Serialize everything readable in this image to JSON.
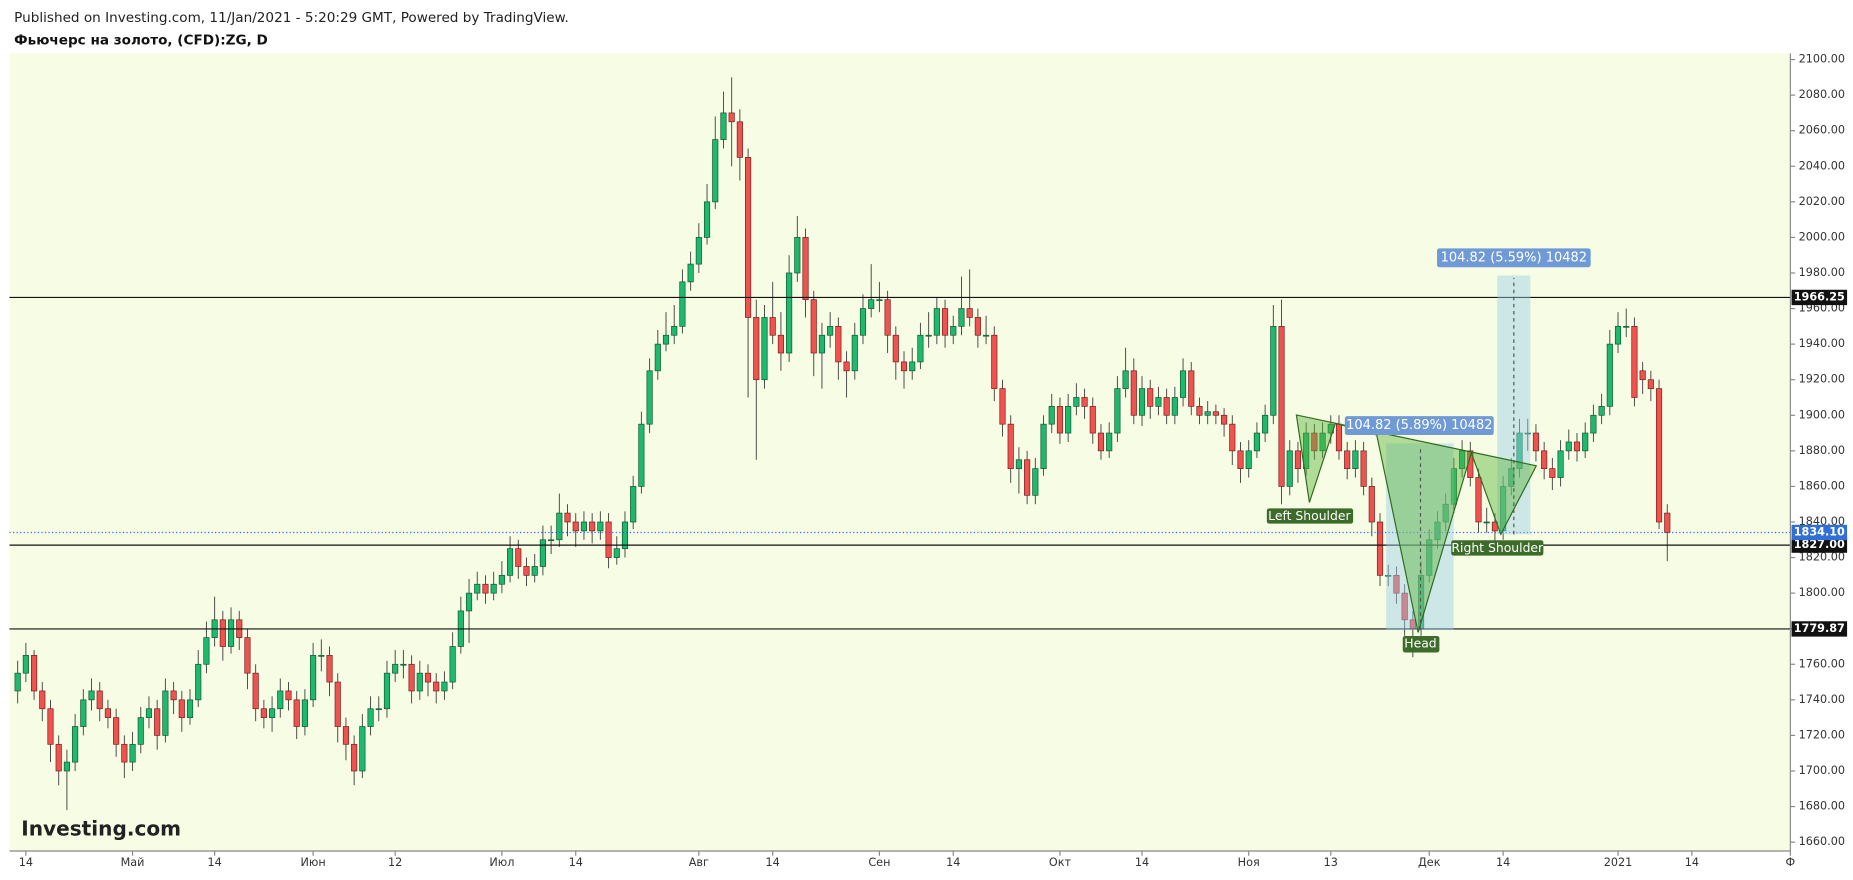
{
  "header": {
    "published": "Published on Investing.com, 11/Jan/2021 - 5:20:29 GMT, Powered by TradingView."
  },
  "logo": "Investing.com",
  "chart_data": {
    "type": "candlestick",
    "title": "Фьючерс на золото, (CFD):ZG, D",
    "up_color": "#1fb96e",
    "down_color": "#ef5350",
    "xlim": [
      -1,
      216
    ],
    "xticks": [
      {
        "value": 1,
        "label": "14"
      },
      {
        "value": 14,
        "label": "Май"
      },
      {
        "value": 24,
        "label": "14"
      },
      {
        "value": 36,
        "label": "Июн"
      },
      {
        "value": 46,
        "label": "12"
      },
      {
        "value": 59,
        "label": "Июл"
      },
      {
        "value": 68,
        "label": "14"
      },
      {
        "value": 83,
        "label": "Авг"
      },
      {
        "value": 92,
        "label": "14"
      },
      {
        "value": 105,
        "label": "Сен"
      },
      {
        "value": 114,
        "label": "14"
      },
      {
        "value": 127,
        "label": "Окт"
      },
      {
        "value": 137,
        "label": "14"
      },
      {
        "value": 150,
        "label": "Ноя"
      },
      {
        "value": 160,
        "label": "13"
      },
      {
        "value": 172,
        "label": "Дек"
      },
      {
        "value": 181,
        "label": "14"
      },
      {
        "value": 195,
        "label": "2021"
      },
      {
        "value": 204,
        "label": "14"
      },
      {
        "value": 216,
        "label": "Ф"
      }
    ],
    "ylim": [
      1655,
      2103.5
    ],
    "yticks": [
      {
        "value": 1660,
        "label": "1660.00"
      },
      {
        "value": 1680,
        "label": "1680.00"
      },
      {
        "value": 1700,
        "label": "1700.00"
      },
      {
        "value": 1720,
        "label": "1720.00"
      },
      {
        "value": 1740,
        "label": "1740.00"
      },
      {
        "value": 1760,
        "label": "1760.00"
      },
      {
        "value": 1780,
        "label": "1780.00"
      },
      {
        "value": 1800,
        "label": "1800.00"
      },
      {
        "value": 1820,
        "label": "1820.00"
      },
      {
        "value": 1840,
        "label": "1840.00"
      },
      {
        "value": 1860,
        "label": "1860.00"
      },
      {
        "value": 1880,
        "label": "1880.00"
      },
      {
        "value": 1900,
        "label": "1900.00"
      },
      {
        "value": 1920,
        "label": "1920.00"
      },
      {
        "value": 1940,
        "label": "1940.00"
      },
      {
        "value": 1960,
        "label": "1960.00"
      },
      {
        "value": 1980,
        "label": "1980.00"
      },
      {
        "value": 2000,
        "label": "2000.00"
      },
      {
        "value": 2020,
        "label": "2020.00"
      },
      {
        "value": 2040,
        "label": "2040.00"
      },
      {
        "value": 2060,
        "label": "2060.00"
      },
      {
        "value": 2080,
        "label": "2080.00"
      },
      {
        "value": 2100,
        "label": "2100.00"
      }
    ],
    "levels": [
      1966.25,
      {
        "value": 1827,
        "label": "1827.00"
      },
      1779.87
    ],
    "last_price": {
      "value": 1834.1,
      "label": "1834.10"
    },
    "annotations": [
      "Left Shoulder",
      "Head",
      "Right Shoulder",
      "104.82 (5.89%) 10482",
      "104.82 (5.59%) 10482"
    ],
    "candles": [
      [
        1745,
        1762,
        1738,
        1755
      ],
      [
        1755,
        1772,
        1750,
        1765
      ],
      [
        1765,
        1768,
        1740,
        1745
      ],
      [
        1745,
        1750,
        1728,
        1735
      ],
      [
        1735,
        1740,
        1705,
        1715
      ],
      [
        1715,
        1720,
        1692,
        1700
      ],
      [
        1700,
        1712,
        1678,
        1705
      ],
      [
        1705,
        1732,
        1700,
        1725
      ],
      [
        1725,
        1746,
        1720,
        1740
      ],
      [
        1740,
        1752,
        1734,
        1745
      ],
      [
        1745,
        1750,
        1728,
        1735
      ],
      [
        1735,
        1740,
        1724,
        1730
      ],
      [
        1730,
        1735,
        1708,
        1715
      ],
      [
        1715,
        1720,
        1696,
        1705
      ],
      [
        1705,
        1722,
        1700,
        1715
      ],
      [
        1715,
        1736,
        1710,
        1730
      ],
      [
        1730,
        1742,
        1724,
        1735
      ],
      [
        1735,
        1740,
        1712,
        1720
      ],
      [
        1720,
        1752,
        1716,
        1745
      ],
      [
        1745,
        1750,
        1732,
        1740
      ],
      [
        1740,
        1745,
        1722,
        1730
      ],
      [
        1730,
        1746,
        1726,
        1740
      ],
      [
        1740,
        1768,
        1736,
        1760
      ],
      [
        1760,
        1784,
        1755,
        1775
      ],
      [
        1775,
        1798,
        1770,
        1785
      ],
      [
        1785,
        1790,
        1762,
        1770
      ],
      [
        1770,
        1792,
        1766,
        1785
      ],
      [
        1785,
        1790,
        1768,
        1775
      ],
      [
        1775,
        1780,
        1746,
        1755
      ],
      [
        1755,
        1760,
        1728,
        1735
      ],
      [
        1735,
        1740,
        1724,
        1730
      ],
      [
        1730,
        1742,
        1722,
        1735
      ],
      [
        1735,
        1752,
        1730,
        1745
      ],
      [
        1745,
        1750,
        1734,
        1740
      ],
      [
        1740,
        1745,
        1718,
        1725
      ],
      [
        1725,
        1746,
        1720,
        1740
      ],
      [
        1740,
        1772,
        1736,
        1765
      ],
      [
        1765,
        1774,
        1756,
        1765
      ],
      [
        1765,
        1770,
        1742,
        1750
      ],
      [
        1750,
        1755,
        1716,
        1725
      ],
      [
        1725,
        1730,
        1706,
        1715
      ],
      [
        1715,
        1720,
        1692,
        1700
      ],
      [
        1700,
        1732,
        1696,
        1725
      ],
      [
        1725,
        1742,
        1720,
        1735
      ],
      [
        1735,
        1742,
        1728,
        1735
      ],
      [
        1735,
        1762,
        1730,
        1755
      ],
      [
        1755,
        1768,
        1750,
        1760
      ],
      [
        1760,
        1768,
        1752,
        1760
      ],
      [
        1760,
        1765,
        1738,
        1745
      ],
      [
        1745,
        1762,
        1740,
        1755
      ],
      [
        1755,
        1760,
        1742,
        1750
      ],
      [
        1750,
        1755,
        1738,
        1745
      ],
      [
        1745,
        1756,
        1740,
        1750
      ],
      [
        1750,
        1778,
        1746,
        1770
      ],
      [
        1770,
        1798,
        1766,
        1790
      ],
      [
        1790,
        1808,
        1772,
        1800
      ],
      [
        1800,
        1812,
        1796,
        1805
      ],
      [
        1805,
        1810,
        1794,
        1800
      ],
      [
        1800,
        1812,
        1796,
        1805
      ],
      [
        1805,
        1818,
        1800,
        1810
      ],
      [
        1810,
        1832,
        1806,
        1825
      ],
      [
        1825,
        1830,
        1808,
        1815
      ],
      [
        1815,
        1820,
        1804,
        1810
      ],
      [
        1810,
        1822,
        1806,
        1815
      ],
      [
        1815,
        1838,
        1810,
        1830
      ],
      [
        1830,
        1838,
        1822,
        1830
      ],
      [
        1830,
        1856,
        1826,
        1845
      ],
      [
        1845,
        1850,
        1832,
        1840
      ],
      [
        1840,
        1845,
        1826,
        1835
      ],
      [
        1835,
        1846,
        1830,
        1840
      ],
      [
        1840,
        1845,
        1828,
        1835
      ],
      [
        1835,
        1846,
        1830,
        1840
      ],
      [
        1840,
        1845,
        1814,
        1820
      ],
      [
        1820,
        1832,
        1816,
        1825
      ],
      [
        1825,
        1846,
        1820,
        1840
      ],
      [
        1840,
        1866,
        1836,
        1860
      ],
      [
        1860,
        1902,
        1856,
        1895
      ],
      [
        1895,
        1932,
        1890,
        1925
      ],
      [
        1925,
        1948,
        1920,
        1940
      ],
      [
        1940,
        1958,
        1936,
        1945
      ],
      [
        1945,
        1962,
        1940,
        1950
      ],
      [
        1950,
        1982,
        1946,
        1975
      ],
      [
        1975,
        1992,
        1970,
        1985
      ],
      [
        1985,
        2008,
        1980,
        2000
      ],
      [
        2000,
        2030,
        1996,
        2020
      ],
      [
        2020,
        2068,
        2016,
        2055
      ],
      [
        2055,
        2082,
        2050,
        2070
      ],
      [
        2070,
        2090,
        2040,
        2065
      ],
      [
        2065,
        2072,
        2032,
        2045
      ],
      [
        2045,
        2050,
        1910,
        1955
      ],
      [
        1955,
        1965,
        1875,
        1920
      ],
      [
        1920,
        1962,
        1915,
        1955
      ],
      [
        1955,
        1975,
        1940,
        1945
      ],
      [
        1945,
        1958,
        1925,
        1935
      ],
      [
        1935,
        1990,
        1930,
        1980
      ],
      [
        1980,
        2012,
        1975,
        2000
      ],
      [
        2000,
        2005,
        1955,
        1965
      ],
      [
        1965,
        1970,
        1922,
        1935
      ],
      [
        1935,
        1952,
        1915,
        1945
      ],
      [
        1945,
        1958,
        1938,
        1950
      ],
      [
        1950,
        1955,
        1920,
        1930
      ],
      [
        1930,
        1936,
        1910,
        1925
      ],
      [
        1925,
        1952,
        1920,
        1945
      ],
      [
        1945,
        1968,
        1940,
        1960
      ],
      [
        1960,
        1985,
        1955,
        1965
      ],
      [
        1965,
        1975,
        1958,
        1965
      ],
      [
        1965,
        1970,
        1935,
        1945
      ],
      [
        1945,
        1950,
        1920,
        1930
      ],
      [
        1930,
        1936,
        1915,
        1925
      ],
      [
        1925,
        1938,
        1920,
        1930
      ],
      [
        1930,
        1952,
        1926,
        1945
      ],
      [
        1945,
        1958,
        1938,
        1945
      ],
      [
        1945,
        1966,
        1940,
        1960
      ],
      [
        1960,
        1965,
        1938,
        1945
      ],
      [
        1945,
        1956,
        1940,
        1950
      ],
      [
        1950,
        1978,
        1945,
        1960
      ],
      [
        1960,
        1982,
        1950,
        1955
      ],
      [
        1955,
        1960,
        1938,
        1945
      ],
      [
        1945,
        1956,
        1940,
        1945
      ],
      [
        1945,
        1950,
        1908,
        1915
      ],
      [
        1915,
        1920,
        1888,
        1895
      ],
      [
        1895,
        1900,
        1862,
        1870
      ],
      [
        1870,
        1882,
        1856,
        1875
      ],
      [
        1875,
        1880,
        1850,
        1855
      ],
      [
        1855,
        1876,
        1850,
        1870
      ],
      [
        1870,
        1900,
        1866,
        1895
      ],
      [
        1895,
        1912,
        1890,
        1905
      ],
      [
        1905,
        1910,
        1884,
        1890
      ],
      [
        1890,
        1912,
        1885,
        1905
      ],
      [
        1905,
        1918,
        1900,
        1910
      ],
      [
        1910,
        1915,
        1898,
        1905
      ],
      [
        1905,
        1910,
        1884,
        1890
      ],
      [
        1890,
        1895,
        1875,
        1880
      ],
      [
        1880,
        1896,
        1876,
        1890
      ],
      [
        1890,
        1922,
        1885,
        1915
      ],
      [
        1915,
        1938,
        1910,
        1925
      ],
      [
        1925,
        1932,
        1895,
        1900
      ],
      [
        1900,
        1922,
        1894,
        1915
      ],
      [
        1915,
        1920,
        1898,
        1905
      ],
      [
        1905,
        1916,
        1900,
        1910
      ],
      [
        1910,
        1915,
        1895,
        1900
      ],
      [
        1900,
        1916,
        1895,
        1910
      ],
      [
        1910,
        1932,
        1905,
        1925
      ],
      [
        1925,
        1930,
        1900,
        1905
      ],
      [
        1905,
        1910,
        1895,
        1900
      ],
      [
        1900,
        1908,
        1895,
        1902
      ],
      [
        1902,
        1906,
        1895,
        1900
      ],
      [
        1900,
        1904,
        1888,
        1895
      ],
      [
        1895,
        1900,
        1872,
        1880
      ],
      [
        1880,
        1885,
        1862,
        1870
      ],
      [
        1870,
        1886,
        1865,
        1880
      ],
      [
        1880,
        1896,
        1876,
        1890
      ],
      [
        1890,
        1906,
        1885,
        1900
      ],
      [
        1900,
        1962,
        1895,
        1950
      ],
      [
        1950,
        1965,
        1850,
        1860
      ],
      [
        1860,
        1886,
        1855,
        1880
      ],
      [
        1880,
        1885,
        1862,
        1870
      ],
      [
        1870,
        1896,
        1866,
        1890
      ],
      [
        1890,
        1895,
        1875,
        1880
      ],
      [
        1880,
        1896,
        1876,
        1890
      ],
      [
        1890,
        1900,
        1884,
        1895
      ],
      [
        1895,
        1900,
        1875,
        1880
      ],
      [
        1880,
        1885,
        1864,
        1870
      ],
      [
        1870,
        1886,
        1865,
        1880
      ],
      [
        1880,
        1885,
        1855,
        1860
      ],
      [
        1860,
        1865,
        1832,
        1840
      ],
      [
        1840,
        1845,
        1804,
        1810
      ],
      [
        1810,
        1816,
        1804,
        1810
      ],
      [
        1810,
        1815,
        1794,
        1800
      ],
      [
        1800,
        1805,
        1776,
        1785
      ],
      [
        1785,
        1790,
        1764,
        1780
      ],
      [
        1780,
        1818,
        1776,
        1810
      ],
      [
        1810,
        1836,
        1806,
        1830
      ],
      [
        1830,
        1846,
        1825,
        1840
      ],
      [
        1840,
        1856,
        1835,
        1850
      ],
      [
        1850,
        1876,
        1845,
        1870
      ],
      [
        1870,
        1886,
        1865,
        1880
      ],
      [
        1880,
        1885,
        1860,
        1865
      ],
      [
        1865,
        1870,
        1834,
        1840
      ],
      [
        1840,
        1848,
        1834,
        1840
      ],
      [
        1840,
        1845,
        1828,
        1835
      ],
      [
        1835,
        1866,
        1830,
        1860
      ],
      [
        1860,
        1876,
        1855,
        1870
      ],
      [
        1870,
        1898,
        1865,
        1890
      ],
      [
        1890,
        1898,
        1880,
        1890
      ],
      [
        1890,
        1895,
        1874,
        1880
      ],
      [
        1880,
        1885,
        1864,
        1870
      ],
      [
        1870,
        1876,
        1858,
        1865
      ],
      [
        1865,
        1886,
        1860,
        1880
      ],
      [
        1880,
        1892,
        1875,
        1885
      ],
      [
        1885,
        1890,
        1874,
        1880
      ],
      [
        1880,
        1896,
        1876,
        1890
      ],
      [
        1890,
        1906,
        1885,
        1900
      ],
      [
        1900,
        1912,
        1895,
        1905
      ],
      [
        1905,
        1948,
        1900,
        1940
      ],
      [
        1940,
        1958,
        1935,
        1950
      ],
      [
        1950,
        1960,
        1944,
        1950
      ],
      [
        1950,
        1955,
        1905,
        1910
      ],
      [
        1925,
        1930,
        1912,
        1920
      ],
      [
        1920,
        1925,
        1908,
        1915
      ],
      [
        1915,
        1920,
        1836,
        1840
      ],
      [
        1845,
        1850,
        1818,
        1834.1
      ]
    ]
  }
}
